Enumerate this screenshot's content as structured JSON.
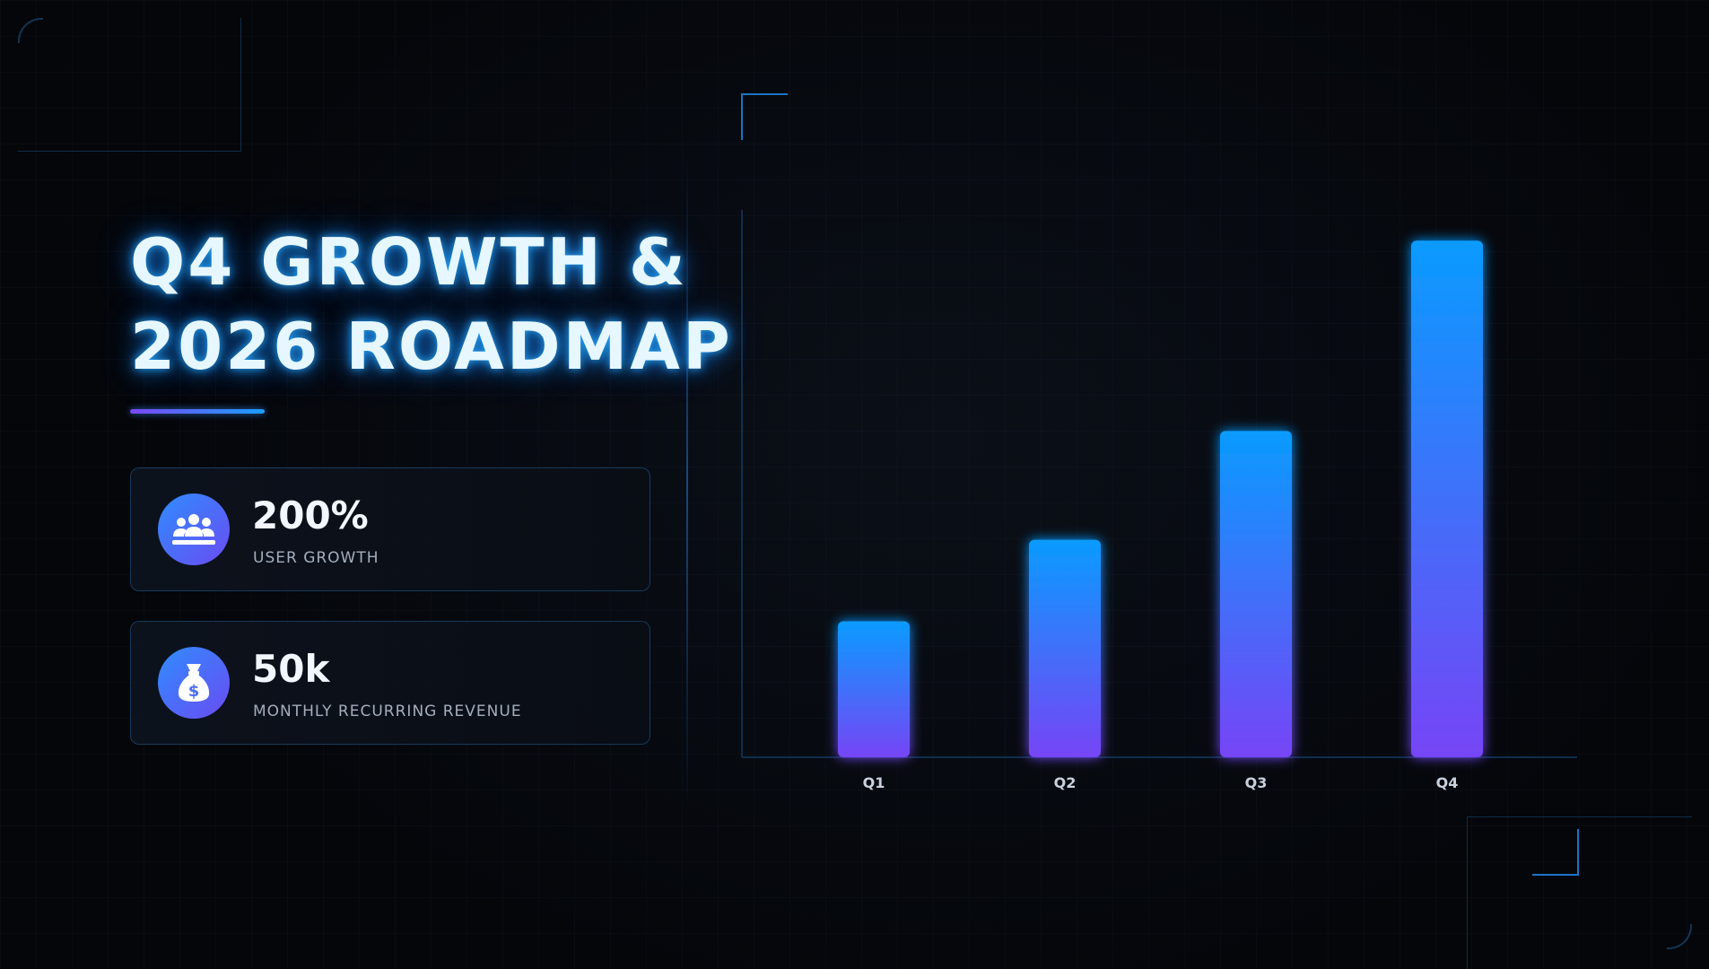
{
  "slide": {
    "title_lines": [
      "Q4 GROWTH &",
      "2026 ROADMAP"
    ],
    "colors": {
      "accent_blue": "#0a9bff",
      "accent_purple": "#7645f5",
      "background": "#05070b",
      "title_glow": "#28aaff"
    }
  },
  "stats": [
    {
      "icon": "users-group-icon",
      "value": "200%",
      "label": "USER GROWTH"
    },
    {
      "icon": "money-bag-icon",
      "value": "50k",
      "label": "MONTHLY RECURRING REVENUE"
    }
  ],
  "chart_data": {
    "type": "bar",
    "categories": [
      "Q1",
      "Q2",
      "Q3",
      "Q4"
    ],
    "values": [
      25,
      40,
      60,
      95
    ],
    "ylim": [
      0,
      100
    ],
    "grid": false,
    "legend": "none",
    "title": "",
    "xlabel": "",
    "ylabel": ""
  }
}
